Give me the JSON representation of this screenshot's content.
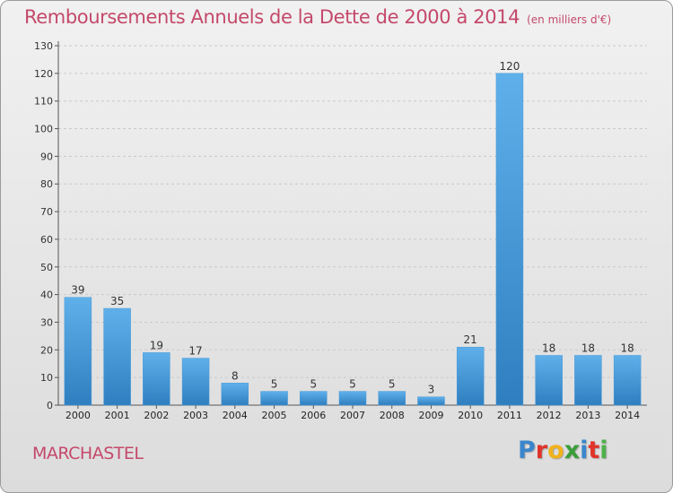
{
  "title": "Remboursements Annuels de la Dette de 2000 à 2014",
  "unit": "(en milliers d'€)",
  "commune": "MARCHASTEL",
  "brand": "Proxiti",
  "colors": {
    "title": "#c4496b",
    "bar_light": "#5fb0ea",
    "bar_dark": "#2f7fc0",
    "grid": "#c9c9c9",
    "brand_letters": [
      "#3a86cc",
      "#e0342b",
      "#f1b21b",
      "#3a9d3a",
      "#3a86cc",
      "#e0342b",
      "#4fb04a"
    ]
  },
  "chart_data": {
    "type": "bar",
    "categories": [
      "2000",
      "2001",
      "2002",
      "2003",
      "2004",
      "2005",
      "2006",
      "2007",
      "2008",
      "2009",
      "2010",
      "2011",
      "2012",
      "2013",
      "2014"
    ],
    "values": [
      39,
      35,
      19,
      17,
      8,
      5,
      5,
      5,
      5,
      3,
      21,
      120,
      18,
      18,
      18
    ],
    "ylim": [
      0,
      130
    ],
    "yticks": [
      0,
      10,
      20,
      30,
      40,
      50,
      60,
      70,
      80,
      90,
      100,
      110,
      120,
      130
    ],
    "grid": true,
    "xlabel": "",
    "ylabel": ""
  }
}
